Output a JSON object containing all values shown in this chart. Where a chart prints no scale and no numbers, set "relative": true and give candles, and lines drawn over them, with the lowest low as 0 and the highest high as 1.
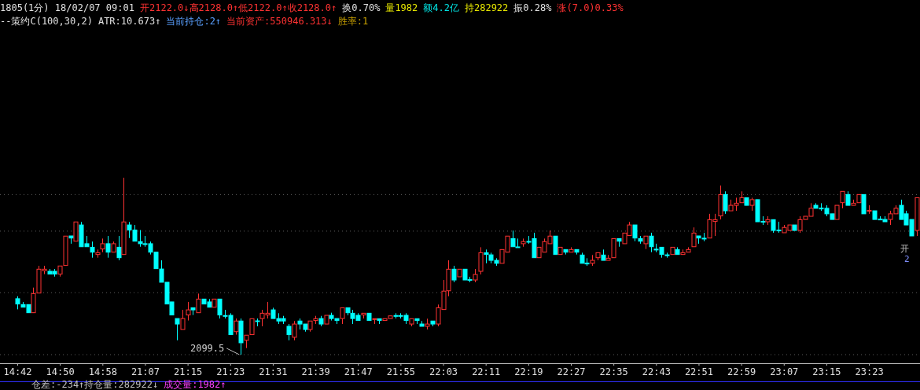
{
  "chart_data": {
    "type": "candlestick",
    "relative": true,
    "colors": [
      "#00ffff",
      "#00ffff",
      "#00ffff",
      "#ff3232",
      "#ff3232",
      "#ff3232",
      "#00ffff",
      "#00ffff",
      "#ff3232",
      "#ff3232",
      "#00ffff",
      "#ff3232",
      "#00ffff",
      "#00ffff",
      "#00ffff",
      "#ff3232",
      "#ff3232",
      "#00ffff",
      "#ff3232",
      "#00ffff",
      "#ff3232",
      "#00ffff",
      "#00ffff",
      "#00ffff",
      "#00ffff",
      "#00ffff",
      "#00ffff",
      "#00ffff",
      "#00ffff",
      "#00ffff",
      "#00ffff",
      "#ff3232",
      "#ff3232",
      "#00ffff",
      "#ff3232",
      "#00ffff",
      "#00ffff",
      "#ff3232",
      "#00ffff",
      "#00ffff",
      "#00ffff",
      "#ff3232",
      "#00ffff",
      "#ff3232",
      "#ff3232",
      "#00ffff",
      "#ff3232",
      "#ff3232",
      "#00ffff",
      "#00ffff",
      "#00ffff",
      "#00ffff",
      "#ff3232",
      "#00ffff",
      "#00ffff",
      "#ff3232",
      "#ff3232",
      "#00ffff",
      "#ff3232",
      "#00ffff",
      "#00ffff",
      "#ff3232",
      "#00ffff",
      "#00ffff",
      "#00ffff",
      "#ff3232",
      "#00ffff",
      "#ff3232",
      "#00ffff",
      "#ff3232",
      "#ff3232",
      "#00ffff",
      "#00ffff",
      "#00ffff",
      "#ff3232",
      "#00ffff",
      "#00ffff",
      "#ff3232",
      "#00ffff",
      "#ff3232",
      "#ff3232",
      "#ff3232",
      "#00ffff",
      "#ff3232",
      "#00ffff",
      "#00ffff",
      "#ff3232",
      "#ff3232",
      "#00ffff",
      "#00ffff",
      "#00ffff",
      "#ff3232",
      "#ff3232",
      "#00ffff",
      "#00ffff",
      "#ff3232",
      "#00ffff",
      "#00ffff",
      "#ff3232",
      "#ff3232",
      "#ff3232",
      "#00ffff",
      "#ff3232",
      "#00ffff",
      "#ff3232",
      "#00ffff",
      "#00ffff",
      "#00ffff",
      "#ff3232",
      "#ff3232",
      "#00ffff",
      "#ff3232",
      "#ff3232",
      "#00ffff",
      "#ff3232",
      "#ff3232",
      "#00ffff",
      "#00ffff",
      "#ff3232",
      "#00ffff",
      "#00ffff",
      "#00ffff",
      "#00ffff",
      "#ff3232",
      "#00ffff",
      "#ff3232",
      "#ff3232",
      "#ff3232",
      "#00ffff",
      "#00ffff",
      "#ff3232",
      "#ff3232",
      "#ff3232",
      "#00ffff",
      "#ff3232",
      "#ff3232",
      "#ff3232",
      "#00ffff",
      "#ff3232",
      "#00ffff",
      "#00ffff",
      "#ff3232",
      "#00ffff",
      "#00ffff",
      "#ff3232",
      "#ff3232",
      "#00ffff",
      "#ff3232",
      "#ff3232",
      "#ff3232",
      "#00ffff",
      "#00ffff",
      "#00ffff",
      "#00ffff",
      "#ff3232",
      "#ff3232",
      "#00ffff",
      "#ff3232",
      "#ff3232",
      "#00ffff",
      "#ff3232",
      "#00ffff",
      "#00ffff",
      "#00ffff",
      "#ff3232",
      "#ff3232",
      "#00ffff",
      "#00ffff",
      "#00ffff",
      "#ff3232"
    ],
    "categories": [
      "14:42",
      null,
      null,
      null,
      null,
      null,
      null,
      null,
      "14:50",
      null,
      null,
      null,
      null,
      null,
      null,
      null,
      "14:58",
      null,
      null,
      null,
      null,
      null,
      null,
      null,
      "21:07",
      null,
      null,
      null,
      null,
      null,
      null,
      null,
      "21:15",
      null,
      null,
      null,
      null,
      null,
      null,
      null,
      "21:23",
      null,
      null,
      null,
      null,
      null,
      null,
      null,
      "21:31",
      null,
      null,
      null,
      null,
      null,
      null,
      null,
      "21:39",
      null,
      null,
      null,
      null,
      null,
      null,
      null,
      "21:47",
      null,
      null,
      null,
      null,
      null,
      null,
      null,
      "21:55",
      null,
      null,
      null,
      null,
      null,
      null,
      null,
      "22:03",
      null,
      null,
      null,
      null,
      null,
      null,
      null,
      "22:11",
      null,
      null,
      null,
      null,
      null,
      null,
      null,
      "22:19",
      null,
      null,
      null,
      null,
      null,
      null,
      null,
      "22:27",
      null,
      null,
      null,
      null,
      null,
      null,
      null,
      "22:35",
      null,
      null,
      null,
      null,
      null,
      null,
      null,
      "22:43",
      null,
      null,
      null,
      null,
      null,
      null,
      null,
      "22:51",
      null,
      null,
      null,
      null,
      null,
      null,
      null,
      "22:59",
      null,
      null,
      null,
      null,
      null,
      null,
      null,
      "23:07",
      null,
      null,
      null,
      null,
      null,
      null,
      null,
      "23:15",
      null,
      null,
      null,
      null,
      null,
      null,
      null,
      "23:23",
      null,
      null,
      null,
      null,
      null,
      null,
      null,
      null,
      null
    ],
    "ohlc": [
      [
        0.316,
        0.33,
        0.256,
        0.286
      ],
      [
        0.283,
        0.298,
        0.268,
        0.268
      ],
      [
        0.283,
        0.283,
        0.237,
        0.237
      ],
      [
        0.237,
        0.379,
        0.237,
        0.345
      ],
      [
        0.348,
        0.502,
        0.348,
        0.483
      ],
      [
        0.474,
        0.502,
        0.455,
        0.483
      ],
      [
        0.471,
        0.484,
        0.455,
        0.455
      ],
      [
        0.471,
        0.484,
        0.441,
        0.455
      ],
      [
        0.455,
        0.501,
        0.441,
        0.501
      ],
      [
        0.504,
        0.67,
        0.504,
        0.67
      ],
      [
        0.671,
        0.671,
        0.627,
        0.659
      ],
      [
        0.641,
        0.75,
        0.641,
        0.75
      ],
      [
        0.733,
        0.75,
        0.61,
        0.61
      ],
      [
        0.627,
        0.671,
        0.61,
        0.61
      ],
      [
        0.607,
        0.639,
        0.548,
        0.579
      ],
      [
        0.566,
        0.594,
        0.548,
        0.576
      ],
      [
        0.597,
        0.656,
        0.579,
        0.627
      ],
      [
        0.627,
        0.671,
        0.548,
        0.579
      ],
      [
        0.579,
        0.639,
        0.579,
        0.627
      ],
      [
        0.607,
        0.671,
        0.533,
        0.548
      ],
      [
        0.566,
        1.0,
        0.566,
        0.75
      ],
      [
        0.733,
        0.75,
        0.659,
        0.704
      ],
      [
        0.704,
        0.733,
        0.641,
        0.641
      ],
      [
        0.639,
        0.704,
        0.61,
        0.627
      ],
      [
        0.627,
        0.671,
        0.61,
        0.625
      ],
      [
        0.627,
        0.639,
        0.566,
        0.579
      ],
      [
        0.579,
        0.579,
        0.486,
        0.486
      ],
      [
        0.484,
        0.533,
        0.409,
        0.409
      ],
      [
        0.409,
        0.409,
        0.286,
        0.286
      ],
      [
        0.298,
        0.298,
        0.224,
        0.224
      ],
      [
        0.204,
        0.204,
        0.081,
        0.173
      ],
      [
        0.142,
        0.253,
        0.142,
        0.204
      ],
      [
        0.224,
        0.298,
        0.193,
        0.253
      ],
      [
        0.265,
        0.265,
        0.224,
        0.253
      ],
      [
        0.237,
        0.345,
        0.237,
        0.314
      ],
      [
        0.314,
        0.314,
        0.286,
        0.286
      ],
      [
        0.298,
        0.314,
        0.268,
        0.268
      ],
      [
        0.268,
        0.314,
        0.268,
        0.314
      ],
      [
        0.314,
        0.314,
        0.204,
        0.224
      ],
      [
        0.221,
        0.253,
        0.204,
        0.218
      ],
      [
        0.222,
        0.234,
        0.113,
        0.113
      ],
      [
        0.13,
        0.204,
        0.113,
        0.19
      ],
      [
        0.19,
        0.204,
        0,
        0.067
      ],
      [
        0.081,
        0.11,
        0.037,
        0.11
      ],
      [
        0.113,
        0.203,
        0.113,
        0.203
      ],
      [
        0.191,
        0.204,
        0.16,
        0.188
      ],
      [
        0.204,
        0.253,
        0.16,
        0.234
      ],
      [
        0.224,
        0.298,
        0.204,
        0.234
      ],
      [
        0.253,
        0.265,
        0.204,
        0.204
      ],
      [
        0.204,
        0.234,
        0.173,
        0.19
      ],
      [
        0.204,
        0.219,
        0.173,
        0.19
      ],
      [
        0.16,
        0.173,
        0.081,
        0.113
      ],
      [
        0.098,
        0.19,
        0.081,
        0.173
      ],
      [
        0.19,
        0.204,
        0.142,
        0.173
      ],
      [
        0.173,
        0.173,
        0.13,
        0.142
      ],
      [
        0.142,
        0.19,
        0.13,
        0.19
      ],
      [
        0.193,
        0.219,
        0.173,
        0.203
      ],
      [
        0.204,
        0.219,
        0.16,
        0.173
      ],
      [
        0.173,
        0.222,
        0.173,
        0.222
      ],
      [
        0.222,
        0.237,
        0.193,
        0.204
      ],
      [
        0.204,
        0.204,
        0.173,
        0.193
      ],
      [
        0.204,
        0.265,
        0.173,
        0.265
      ],
      [
        0.265,
        0.265,
        0.222,
        0.237
      ],
      [
        0.234,
        0.253,
        0.173,
        0.204
      ],
      [
        0.222,
        0.234,
        0.193,
        0.193
      ],
      [
        0.224,
        0.234,
        0.204,
        0.234
      ],
      [
        0.234,
        0.234,
        0.193,
        0.193
      ],
      [
        0.201,
        0.203,
        0.173,
        0.203
      ],
      [
        0.203,
        0.203,
        0.173,
        0.193
      ],
      [
        0.193,
        0.203,
        0.193,
        0.203
      ],
      [
        0.204,
        0.219,
        0.204,
        0.219
      ],
      [
        0.221,
        0.234,
        0.204,
        0.218
      ],
      [
        0.221,
        0.234,
        0.204,
        0.218
      ],
      [
        0.222,
        0.234,
        0.173,
        0.193
      ],
      [
        0.173,
        0.203,
        0.16,
        0.203
      ],
      [
        0.203,
        0.203,
        0.173,
        0.193
      ],
      [
        0.173,
        0.19,
        0.16,
        0.16
      ],
      [
        0.16,
        0.203,
        0.142,
        0.173
      ],
      [
        0.19,
        0.19,
        0.16,
        0.173
      ],
      [
        0.173,
        0.283,
        0.16,
        0.265
      ],
      [
        0.255,
        0.422,
        0.255,
        0.359
      ],
      [
        0.361,
        0.533,
        0.33,
        0.483
      ],
      [
        0.483,
        0.502,
        0.409,
        0.422
      ],
      [
        0.44,
        0.483,
        0.44,
        0.483
      ],
      [
        0.483,
        0.483,
        0.422,
        0.422
      ],
      [
        0.424,
        0.44,
        0.409,
        0.421
      ],
      [
        0.422,
        0.484,
        0.409,
        0.453
      ],
      [
        0.471,
        0.607,
        0.453,
        0.576
      ],
      [
        0.576,
        0.594,
        0.516,
        0.566
      ],
      [
        0.564,
        0.576,
        0.516,
        0.533
      ],
      [
        0.533,
        0.545,
        0.502,
        0.516
      ],
      [
        0.516,
        0.594,
        0.516,
        0.594
      ],
      [
        0.579,
        0.67,
        0.579,
        0.67
      ],
      [
        0.656,
        0.701,
        0.61,
        0.61
      ],
      [
        0.609,
        0.656,
        0.607,
        0.607
      ],
      [
        0.627,
        0.656,
        0.61,
        0.639
      ],
      [
        0.64,
        0.671,
        0.627,
        0.637
      ],
      [
        0.656,
        0.689,
        0.548,
        0.548
      ],
      [
        0.548,
        0.607,
        0.548,
        0.607
      ],
      [
        0.579,
        0.656,
        0.579,
        0.639
      ],
      [
        0.627,
        0.701,
        0.627,
        0.67
      ],
      [
        0.67,
        0.67,
        0.566,
        0.566
      ],
      [
        0.566,
        0.607,
        0.566,
        0.607
      ],
      [
        0.594,
        0.594,
        0.566,
        0.579
      ],
      [
        0.579,
        0.607,
        0.579,
        0.594
      ],
      [
        0.594,
        0.594,
        0.566,
        0.579
      ],
      [
        0.563,
        0.576,
        0.516,
        0.516
      ],
      [
        0.517,
        0.545,
        0.502,
        0.514
      ],
      [
        0.516,
        0.563,
        0.502,
        0.533
      ],
      [
        0.548,
        0.576,
        0.533,
        0.576
      ],
      [
        0.563,
        0.594,
        0.533,
        0.533
      ],
      [
        0.533,
        0.563,
        0.533,
        0.545
      ],
      [
        0.548,
        0.656,
        0.548,
        0.656
      ],
      [
        0.656,
        0.656,
        0.61,
        0.641
      ],
      [
        0.627,
        0.687,
        0.627,
        0.687
      ],
      [
        0.673,
        0.75,
        0.673,
        0.733
      ],
      [
        0.733,
        0.733,
        0.641,
        0.659
      ],
      [
        0.656,
        0.671,
        0.627,
        0.641
      ],
      [
        0.627,
        0.67,
        0.597,
        0.67
      ],
      [
        0.67,
        0.689,
        0.579,
        0.61
      ],
      [
        0.596,
        0.627,
        0.579,
        0.593
      ],
      [
        0.607,
        0.607,
        0.548,
        0.566
      ],
      [
        0.564,
        0.576,
        0.548,
        0.561
      ],
      [
        0.566,
        0.607,
        0.566,
        0.607
      ],
      [
        0.594,
        0.607,
        0.566,
        0.566
      ],
      [
        0.566,
        0.594,
        0.566,
        0.576
      ],
      [
        0.579,
        0.607,
        0.579,
        0.594
      ],
      [
        0.61,
        0.719,
        0.61,
        0.687
      ],
      [
        0.671,
        0.671,
        0.627,
        0.659
      ],
      [
        0.658,
        0.689,
        0.641,
        0.655
      ],
      [
        0.659,
        0.796,
        0.659,
        0.763
      ],
      [
        0.753,
        0.796,
        0.671,
        0.763
      ],
      [
        0.784,
        0.956,
        0.764,
        0.905
      ],
      [
        0.905,
        0.923,
        0.796,
        0.813
      ],
      [
        0.813,
        0.876,
        0.813,
        0.844
      ],
      [
        0.844,
        0.887,
        0.813,
        0.856
      ],
      [
        0.859,
        0.923,
        0.859,
        0.887
      ],
      [
        0.887,
        0.887,
        0.844,
        0.844
      ],
      [
        0.844,
        0.887,
        0.813,
        0.876
      ],
      [
        0.876,
        0.876,
        0.751,
        0.751
      ],
      [
        0.753,
        0.782,
        0.733,
        0.75
      ],
      [
        0.751,
        0.782,
        0.733,
        0.763
      ],
      [
        0.763,
        0.763,
        0.689,
        0.702
      ],
      [
        0.704,
        0.751,
        0.689,
        0.701
      ],
      [
        0.689,
        0.733,
        0.689,
        0.719
      ],
      [
        0.702,
        0.733,
        0.702,
        0.733
      ],
      [
        0.733,
        0.733,
        0.702,
        0.702
      ],
      [
        0.702,
        0.782,
        0.689,
        0.763
      ],
      [
        0.764,
        0.782,
        0.764,
        0.782
      ],
      [
        0.782,
        0.856,
        0.782,
        0.827
      ],
      [
        0.844,
        0.856,
        0.827,
        0.827
      ],
      [
        0.828,
        0.856,
        0.813,
        0.825
      ],
      [
        0.827,
        0.844,
        0.782,
        0.796
      ],
      [
        0.796,
        0.796,
        0.764,
        0.764
      ],
      [
        0.764,
        0.844,
        0.764,
        0.844
      ],
      [
        0.859,
        0.923,
        0.827,
        0.923
      ],
      [
        0.905,
        0.923,
        0.844,
        0.844
      ],
      [
        0.844,
        0.876,
        0.844,
        0.856
      ],
      [
        0.859,
        0.905,
        0.859,
        0.905
      ],
      [
        0.905,
        0.905,
        0.796,
        0.796
      ],
      [
        0.812,
        0.844,
        0.796,
        0.815
      ],
      [
        0.813,
        0.813,
        0.764,
        0.764
      ],
      [
        0.766,
        0.782,
        0.76,
        0.763
      ],
      [
        0.764,
        0.782,
        0.751,
        0.751
      ],
      [
        0.764,
        0.813,
        0.733,
        0.796
      ],
      [
        0.796,
        0.844,
        0.796,
        0.827
      ],
      [
        0.844,
        0.876,
        0.764,
        0.764
      ],
      [
        0.796,
        0.813,
        0.733,
        0.733
      ],
      [
        0.764,
        0.764,
        0.671,
        0.671
      ],
      [
        0.702,
        0.887,
        0.671,
        0.887
      ]
    ],
    "ref_lines": [
      {
        "axis": "y",
        "value": 0.905,
        "line_style": "dotted",
        "color": "#5a5a5a"
      },
      {
        "axis": "y",
        "value": 0.698,
        "line_style": "dotted",
        "color": "#5a5a5a"
      },
      {
        "axis": "y",
        "value": 0.35,
        "line_style": "dotted",
        "color": "#5a5a5a"
      },
      {
        "axis": "y",
        "value": 0,
        "line_style": "dotted",
        "color": "#5a5a5a"
      }
    ],
    "annotations": [
      "1805(1分) 18/02/07 09:01",
      "开2122.0↓高2128.0↑低2122.0↑收2128.0↑",
      "换0.70%",
      "量1982",
      "额4.2亿",
      "持282922",
      "振0.28%",
      "涨(7.0)0.33%",
      "--策约C(100,30,2)",
      "ATR:10.673↑",
      "当前持仓:2↑",
      "当前资产:550946.313↓",
      "胜率:1",
      "仓差:-234↑持仓量:282922↓",
      "成交量:1982↑",
      "2099.5",
      "开",
      "2"
    ]
  }
}
